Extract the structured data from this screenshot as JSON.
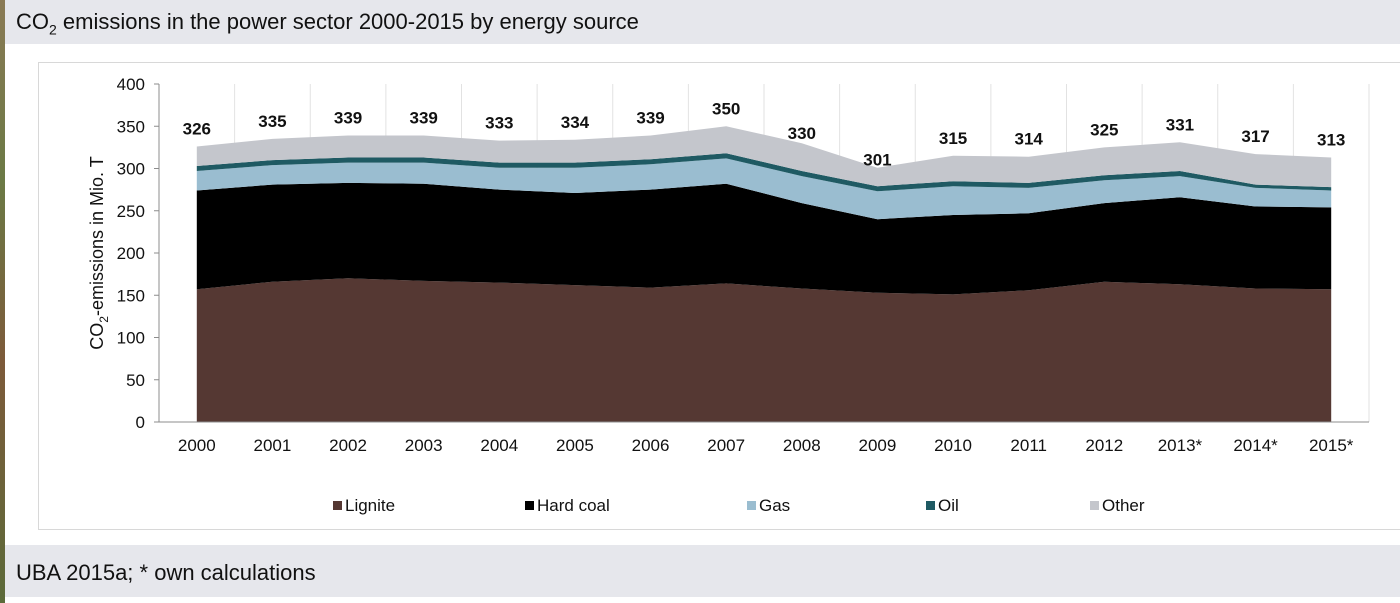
{
  "header": {
    "title_prefix": "CO",
    "title_sub": "2",
    "title_suffix": " emissions in the power sector 2000-2015 by energy source"
  },
  "footer": {
    "source": "UBA 2015a; * own calculations"
  },
  "chart_data": {
    "type": "area",
    "stacked": true,
    "categories": [
      "2000",
      "2001",
      "2002",
      "2003",
      "2004",
      "2005",
      "2006",
      "2007",
      "2008",
      "2009",
      "2010",
      "2011",
      "2012",
      "2013*",
      "2014*",
      "2015*"
    ],
    "ylabel_prefix": "CO",
    "ylabel_sub": "2",
    "ylabel_suffix": "-emissions in Mio. T",
    "ylim": [
      0,
      400
    ],
    "yticks": [
      0,
      50,
      100,
      150,
      200,
      250,
      300,
      350,
      400
    ],
    "grid": "vertical",
    "legend_position": "bottom",
    "totals": [
      326,
      335,
      339,
      339,
      333,
      334,
      339,
      350,
      330,
      301,
      315,
      314,
      325,
      331,
      317,
      313
    ],
    "series": [
      {
        "name": "Lignite",
        "color": "#553833",
        "values": [
          157,
          166,
          170,
          167,
          165,
          162,
          159,
          164,
          158,
          153,
          151,
          156,
          166,
          163,
          158,
          157
        ]
      },
      {
        "name": "Hard coal",
        "color": "#000000",
        "values": [
          117,
          115,
          113,
          115,
          110,
          109,
          116,
          118,
          101,
          87,
          94,
          91,
          93,
          103,
          97,
          97
        ]
      },
      {
        "name": "Gas",
        "color": "#9abdd0",
        "values": [
          23,
          23,
          24,
          25,
          26,
          30,
          30,
          30,
          32,
          33,
          34,
          30,
          27,
          25,
          22,
          20
        ]
      },
      {
        "name": "Oil",
        "color": "#1f5a63",
        "values": [
          6,
          6,
          6,
          6,
          6,
          6,
          6,
          6,
          6,
          6,
          6,
          6,
          6,
          6,
          4,
          4
        ]
      },
      {
        "name": "Other",
        "color": "#c4c6cc",
        "values": [
          23,
          25,
          26,
          26,
          26,
          27,
          28,
          32,
          33,
          22,
          30,
          31,
          33,
          34,
          36,
          35
        ]
      }
    ]
  }
}
